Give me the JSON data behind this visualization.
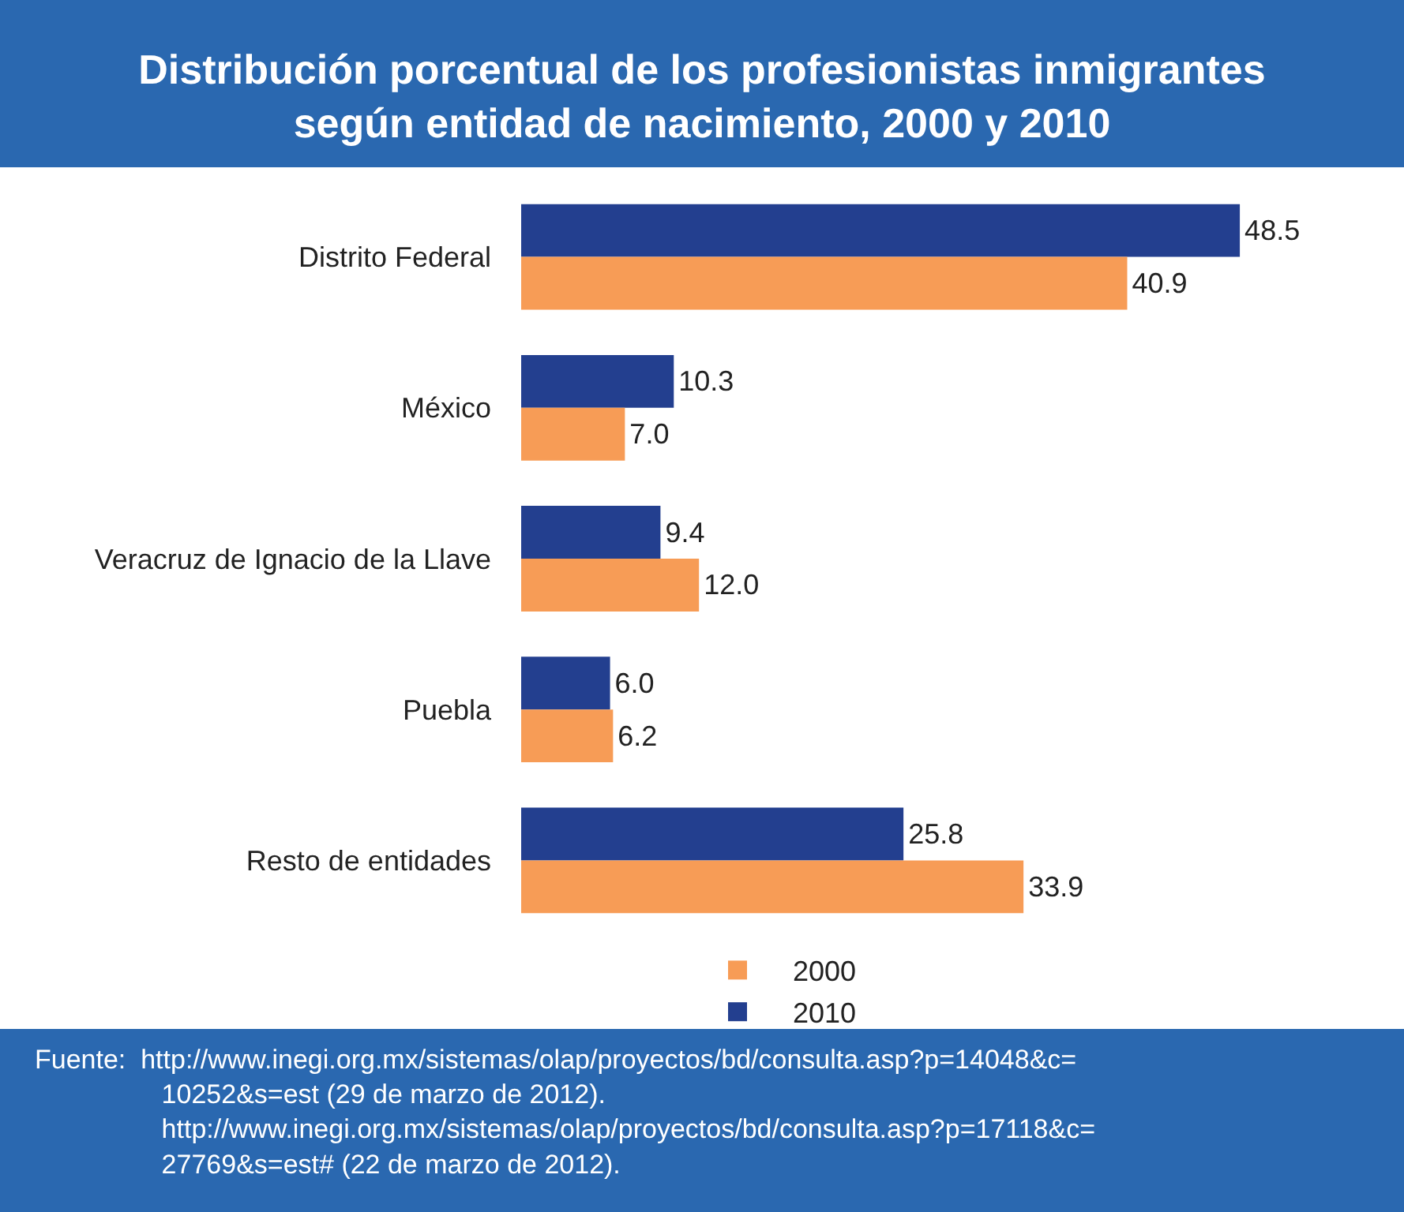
{
  "chart_data": {
    "type": "bar",
    "orientation": "horizontal",
    "title": "Distribución porcentual de los profesionistas inmigrantes\nsegún entidad de nacimiento, 2000 y 2010",
    "categories": [
      "Distrito Federal",
      "México",
      "Veracruz de Ignacio de la Llave",
      "Puebla",
      "Resto de entidades"
    ],
    "series": [
      {
        "name": "2010",
        "color": "#233f8f",
        "values": [
          48.5,
          10.3,
          9.4,
          6.0,
          25.8
        ],
        "value_labels": [
          "48.5",
          "10.3",
          "9.4",
          "6.0",
          "25.8"
        ]
      },
      {
        "name": "2000",
        "color": "#f79c56",
        "values": [
          40.9,
          7.0,
          12.0,
          6.2,
          33.9
        ],
        "value_labels": [
          "40.9",
          "7.0",
          "12.0",
          "6.2",
          "33.9"
        ]
      }
    ],
    "legend": "bottom",
    "annotations": [
      "Fuente:  http://www.inegi.org.mx/sistemas/olap/proyectos/bd/consulta.asp?p=14048&c=\n10252&s=est (29 de marzo de 2012).\nhttp://www.inegi.org.mx/sistemas/olap/proyectos/bd/consulta.asp?p=17118&c=\n27769&s=est# (22 de marzo de 2012)."
    ]
  }
}
